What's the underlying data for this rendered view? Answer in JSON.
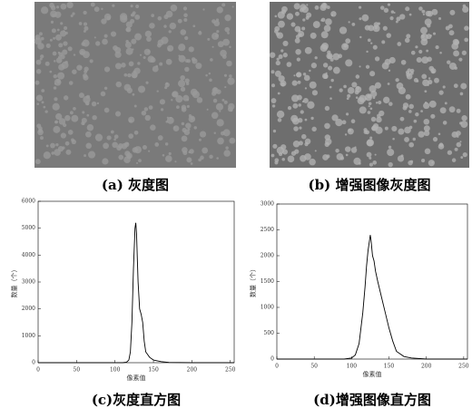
{
  "captions": [
    "(a) 灰度图",
    "(b) 增强图像灰度图"
  ],
  "chart_data": [
    {
      "type": "line",
      "title": "(c)灰度直方图",
      "x_label": "像素值",
      "y_label": "数量（个）",
      "x": [
        0,
        100,
        110,
        115,
        118,
        120,
        122,
        124,
        126,
        127,
        128,
        130,
        132,
        134,
        136,
        138,
        140,
        145,
        150,
        160,
        170,
        200,
        255
      ],
      "values": [
        0,
        0,
        0,
        20,
        100,
        400,
        1500,
        3500,
        5000,
        5200,
        4800,
        3000,
        2000,
        1800,
        1500,
        800,
        400,
        200,
        100,
        40,
        10,
        0,
        0
      ],
      "color": "#000000",
      "xlim": [
        0,
        255
      ],
      "ylim": [
        0,
        6000
      ],
      "xticks": [
        0,
        50,
        100,
        150,
        200,
        250
      ],
      "yticks": [
        0,
        1000,
        2000,
        3000,
        4000,
        5000,
        6000
      ]
    },
    {
      "type": "line",
      "title": "(d)增强图像直方图",
      "x_label": "像素值",
      "y_label": "数量（个）",
      "x": [
        0,
        90,
        100,
        105,
        110,
        115,
        118,
        120,
        122,
        124,
        125,
        126,
        128,
        130,
        132,
        135,
        140,
        145,
        150,
        155,
        160,
        170,
        180,
        200,
        255
      ],
      "values": [
        0,
        0,
        20,
        80,
        300,
        900,
        1400,
        1800,
        2100,
        2300,
        2400,
        2300,
        2000,
        1900,
        1700,
        1500,
        1200,
        900,
        600,
        350,
        150,
        50,
        20,
        0,
        0
      ],
      "color": "#000000",
      "xlim": [
        0,
        255
      ],
      "ylim": [
        0,
        3000
      ],
      "xticks": [
        0,
        50,
        100,
        150,
        200,
        250
      ],
      "yticks": [
        0,
        500,
        1000,
        1500,
        2000,
        2500,
        3000
      ]
    }
  ]
}
